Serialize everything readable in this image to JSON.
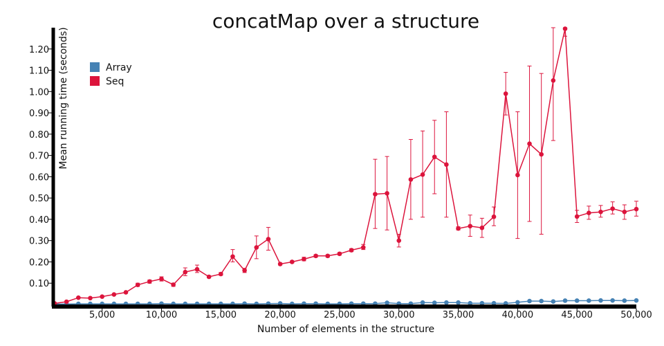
{
  "chart_data": {
    "type": "line",
    "title": "concatMap over a structure",
    "xlabel": "Number of elements in the structure",
    "ylabel": "Mean running time (seconds)",
    "xlim": [
      1000,
      50000
    ],
    "ylim": [
      0,
      1.3
    ],
    "x_ticks": [
      5000,
      10000,
      15000,
      20000,
      25000,
      30000,
      35000,
      40000,
      45000,
      50000
    ],
    "x_tick_labels": [
      "5,000",
      "10,000",
      "15,000",
      "20,000",
      "25,000",
      "30,000",
      "35,000",
      "40,000",
      "45,000",
      "50,000"
    ],
    "y_ticks": [
      0.1,
      0.2,
      0.3,
      0.4,
      0.5,
      0.6,
      0.7,
      0.8,
      0.9,
      1.0,
      1.1,
      1.2
    ],
    "y_tick_labels": [
      "0.10",
      "0.20",
      "0.30",
      "0.40",
      "0.50",
      "0.60",
      "0.70",
      "0.80",
      "0.90",
      "1.00",
      "1.10",
      "1.20"
    ],
    "legend_position": "top-left",
    "x": [
      1000,
      2000,
      3000,
      4000,
      5000,
      6000,
      7000,
      8000,
      9000,
      10000,
      11000,
      12000,
      13000,
      14000,
      15000,
      16000,
      17000,
      18000,
      19000,
      20000,
      21000,
      22000,
      23000,
      24000,
      25000,
      26000,
      27000,
      28000,
      29000,
      30000,
      31000,
      32000,
      33000,
      34000,
      35000,
      36000,
      37000,
      38000,
      39000,
      40000,
      41000,
      42000,
      43000,
      44000,
      45000,
      46000,
      47000,
      48000,
      49000,
      50000
    ],
    "series": [
      {
        "name": "Array",
        "color": "#4682b4",
        "values": [
          0.002,
          0.002,
          0.003,
          0.003,
          0.003,
          0.003,
          0.003,
          0.003,
          0.003,
          0.004,
          0.003,
          0.003,
          0.003,
          0.003,
          0.003,
          0.003,
          0.004,
          0.003,
          0.004,
          0.005,
          0.003,
          0.004,
          0.004,
          0.003,
          0.003,
          0.004,
          0.004,
          0.004,
          0.008,
          0.004,
          0.004,
          0.009,
          0.008,
          0.009,
          0.009,
          0.006,
          0.006,
          0.006,
          0.005,
          0.01,
          0.016,
          0.016,
          0.014,
          0.018,
          0.018,
          0.018,
          0.019,
          0.019,
          0.018,
          0.019
        ]
      },
      {
        "name": "Seq",
        "color": "#dc143c",
        "values": [
          0.005,
          0.013,
          0.032,
          0.03,
          0.037,
          0.047,
          0.057,
          0.092,
          0.108,
          0.12,
          0.093,
          0.152,
          0.165,
          0.13,
          0.143,
          0.225,
          0.16,
          0.268,
          0.307,
          0.19,
          0.2,
          0.213,
          0.228,
          0.228,
          0.238,
          0.255,
          0.268,
          0.518,
          0.522,
          0.3,
          0.587,
          0.61,
          0.693,
          0.657,
          0.357,
          0.368,
          0.36,
          0.412,
          0.99,
          0.608,
          0.755,
          0.705,
          1.052,
          1.295,
          0.413,
          0.43,
          0.435,
          0.45,
          0.435,
          0.448
        ],
        "error_low": [
          0.005,
          0.013,
          0.032,
          0.03,
          0.037,
          0.047,
          0.057,
          0.085,
          0.1,
          0.11,
          0.085,
          0.135,
          0.15,
          0.125,
          0.137,
          0.2,
          0.15,
          0.215,
          0.255,
          0.185,
          0.195,
          0.205,
          0.222,
          0.222,
          0.232,
          0.248,
          0.258,
          0.357,
          0.35,
          0.27,
          0.4,
          0.41,
          0.52,
          0.41,
          0.35,
          0.32,
          0.315,
          0.37,
          0.89,
          0.31,
          0.39,
          0.33,
          0.77,
          1.26,
          0.385,
          0.4,
          0.41,
          0.425,
          0.4,
          0.415
        ],
        "error_high": [
          0.005,
          0.013,
          0.032,
          0.03,
          0.037,
          0.047,
          0.057,
          0.1,
          0.115,
          0.13,
          0.1,
          0.172,
          0.185,
          0.135,
          0.15,
          0.258,
          0.17,
          0.322,
          0.362,
          0.195,
          0.205,
          0.222,
          0.234,
          0.234,
          0.244,
          0.262,
          0.282,
          0.682,
          0.695,
          0.33,
          0.775,
          0.815,
          0.865,
          0.905,
          0.365,
          0.42,
          0.405,
          0.458,
          1.09,
          0.905,
          1.12,
          1.085,
          1.3,
          1.3,
          0.442,
          0.462,
          0.465,
          0.482,
          0.468,
          0.485
        ]
      }
    ]
  }
}
